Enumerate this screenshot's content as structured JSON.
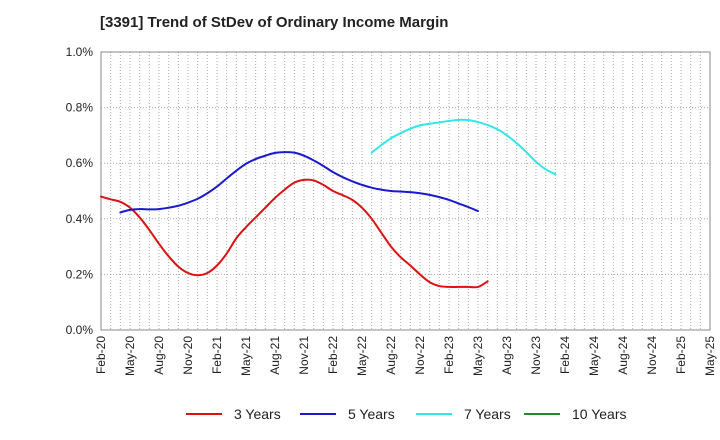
{
  "chart_data": {
    "type": "line",
    "title": "[3391]  Trend of StDev of Ordinary Income Margin",
    "xlabel": "",
    "ylabel": "",
    "x_ticks": [
      "Feb-20",
      "May-20",
      "Aug-20",
      "Nov-20",
      "Feb-21",
      "May-21",
      "Aug-21",
      "Nov-21",
      "Feb-22",
      "May-22",
      "Aug-22",
      "Nov-22",
      "Feb-23",
      "May-23",
      "Aug-23",
      "Nov-23",
      "Feb-24",
      "May-24",
      "Aug-24",
      "Nov-24",
      "Feb-25",
      "May-25"
    ],
    "y_ticks": [
      "0.0%",
      "0.2%",
      "0.4%",
      "0.6%",
      "0.8%",
      "1.0%"
    ],
    "ylim": [
      0,
      1.0
    ],
    "grid": true,
    "legend_position": "bottom",
    "series": [
      {
        "name": "3 Years",
        "color": "#dd1111",
        "start_index": 0,
        "values": [
          0.48,
          0.47,
          0.461,
          0.44,
          0.405,
          0.36,
          0.31,
          0.265,
          0.228,
          0.205,
          0.197,
          0.205,
          0.232,
          0.275,
          0.33,
          0.37,
          0.405,
          0.44,
          0.475,
          0.505,
          0.53,
          0.54,
          0.538,
          0.522,
          0.5,
          0.485,
          0.468,
          0.44,
          0.4,
          0.35,
          0.3,
          0.262,
          0.232,
          0.2,
          0.172,
          0.158,
          0.155,
          0.155,
          0.155,
          0.155,
          0.175
        ]
      },
      {
        "name": "5 Years",
        "color": "#1a1acc",
        "start_index": 2,
        "values": [
          0.423,
          0.432,
          0.435,
          0.434,
          0.435,
          0.44,
          0.447,
          0.458,
          0.472,
          0.492,
          0.516,
          0.545,
          0.573,
          0.598,
          0.615,
          0.627,
          0.637,
          0.64,
          0.638,
          0.627,
          0.61,
          0.59,
          0.568,
          0.55,
          0.535,
          0.522,
          0.512,
          0.505,
          0.5,
          0.498,
          0.496,
          0.492,
          0.486,
          0.478,
          0.468,
          0.455,
          0.442,
          0.428
        ]
      },
      {
        "name": "7 Years",
        "color": "#33e6e6",
        "start_index": 28,
        "values": [
          0.638,
          0.665,
          0.69,
          0.708,
          0.724,
          0.736,
          0.742,
          0.747,
          0.752,
          0.756,
          0.755,
          0.748,
          0.737,
          0.722,
          0.7,
          0.672,
          0.64,
          0.605,
          0.578,
          0.56
        ]
      },
      {
        "name": "10 Years",
        "color": "#22882a",
        "start_index": 0,
        "values": []
      }
    ]
  }
}
